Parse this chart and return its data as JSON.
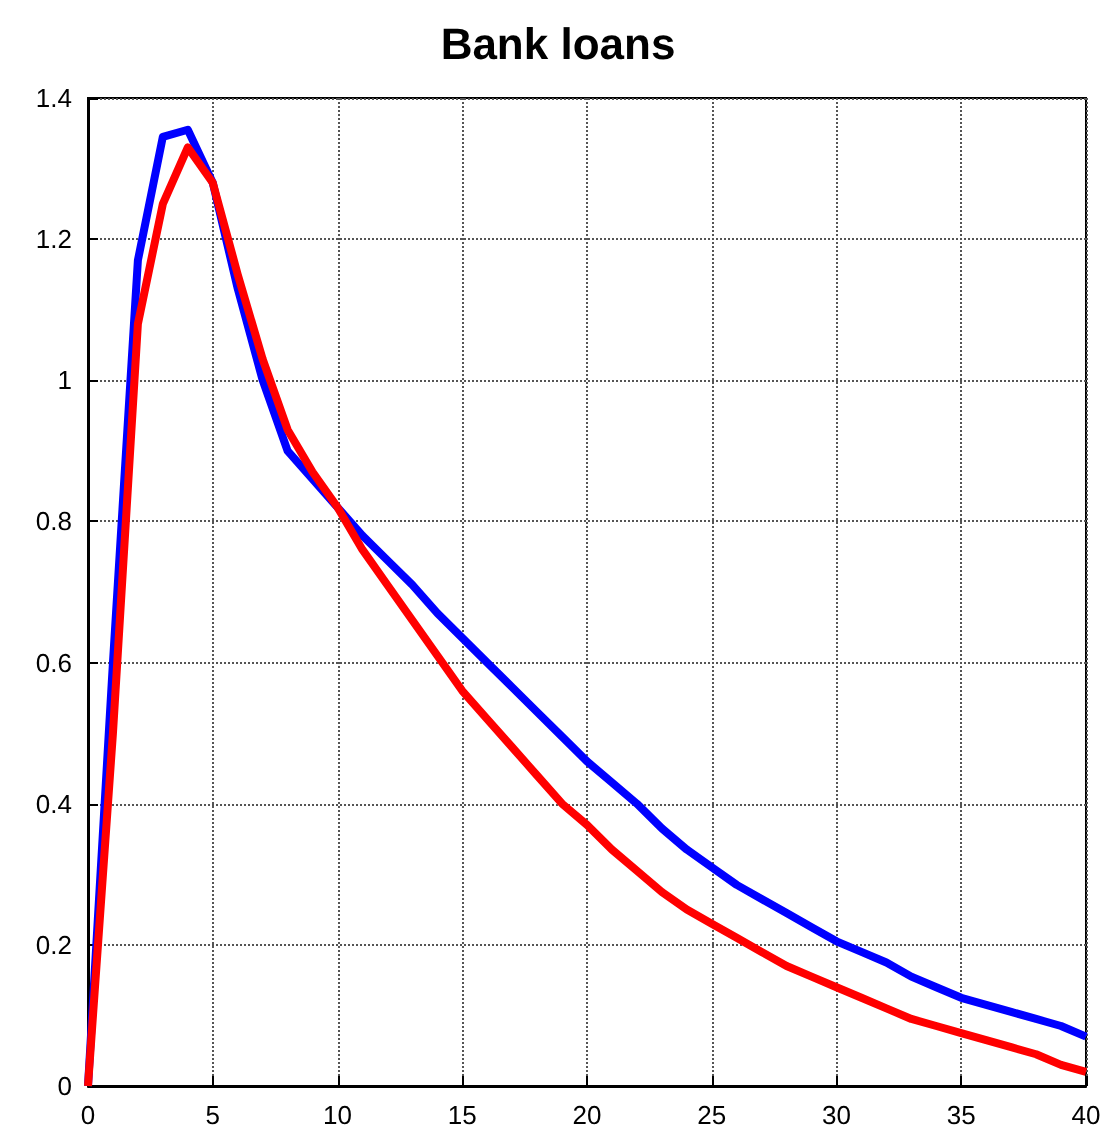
{
  "chart_data": {
    "type": "line",
    "title": "Bank loans",
    "x": [
      0,
      1,
      2,
      3,
      4,
      5,
      6,
      7,
      8,
      9,
      10,
      11,
      12,
      13,
      14,
      15,
      16,
      17,
      18,
      19,
      20,
      21,
      22,
      23,
      24,
      25,
      26,
      27,
      28,
      29,
      30,
      31,
      32,
      33,
      34,
      35,
      36,
      37,
      38,
      39,
      40
    ],
    "series": [
      {
        "color": "#0000ff",
        "values": [
          0,
          0.6,
          1.17,
          1.345,
          1.355,
          1.28,
          1.13,
          1.0,
          0.9,
          0.86,
          0.82,
          0.78,
          0.745,
          0.71,
          0.67,
          0.635,
          0.6,
          0.565,
          0.53,
          0.495,
          0.46,
          0.43,
          0.4,
          0.365,
          0.335,
          0.31,
          0.285,
          0.265,
          0.245,
          0.225,
          0.205,
          0.19,
          0.175,
          0.155,
          0.14,
          0.125,
          0.115,
          0.105,
          0.095,
          0.085,
          0.07
        ]
      },
      {
        "color": "#ff0000",
        "values": [
          0,
          0.5,
          1.08,
          1.25,
          1.33,
          1.28,
          1.15,
          1.03,
          0.93,
          0.87,
          0.82,
          0.76,
          0.71,
          0.66,
          0.61,
          0.56,
          0.52,
          0.48,
          0.44,
          0.4,
          0.37,
          0.335,
          0.305,
          0.275,
          0.25,
          0.23,
          0.21,
          0.19,
          0.17,
          0.155,
          0.14,
          0.125,
          0.11,
          0.095,
          0.085,
          0.075,
          0.065,
          0.055,
          0.045,
          0.03,
          0.02
        ]
      }
    ],
    "xlim": [
      0,
      40
    ],
    "xticks": [
      0,
      5,
      10,
      15,
      20,
      25,
      30,
      35,
      40
    ],
    "ylim": [
      0,
      1.4
    ],
    "yticks": [
      0,
      0.2,
      0.4,
      0.6,
      0.8,
      1,
      1.2,
      1.4
    ],
    "grid": true,
    "line_style": "solid",
    "marker": "none"
  }
}
